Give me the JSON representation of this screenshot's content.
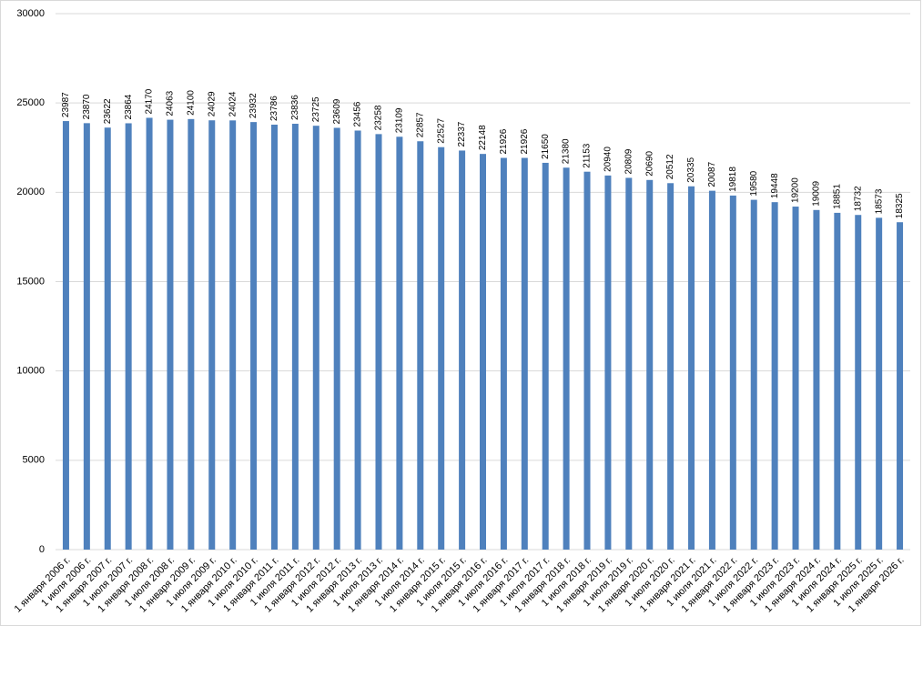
{
  "chart_data": {
    "type": "bar",
    "categories": [
      "1 января 2006 г.",
      "1 июля 2006 г.",
      "1 января 2007 г.",
      "1 июля 2007 г.",
      "1 января 2008 г.",
      "1 июля 2008 г.",
      "1 января 2009 г.",
      "1 июля 2009 г.",
      "1 января 2010 г.",
      "1 июля 2010 г.",
      "1 января 2011 г.",
      "1 июля 2011 г.",
      "1 января 2012 г.",
      "1 июля 2012 г.",
      "1 января 2013 г.",
      "1 июля 2013 г.",
      "1 января 2014 г.",
      "1 июля 2014 г.",
      "1 января 2015 г.",
      "1 июля 2015 г.",
      "1 января 2016 г.",
      "1 июля 2016 г.",
      "1 января 2017 г.",
      "1 июля 2017 г.",
      "1 января 2018 г.",
      "1 июля 2018 г.",
      "1 января 2019 г.",
      "1 июля 2019 г.",
      "1 января 2020 г.",
      "1 июля 2020 г.",
      "1 января 2021 г.",
      "1 июля 2021 г.",
      "1 января 2022 г.",
      "1 июля 2022 г.",
      "1 января 2023 г.",
      "1 июля 2023 г.",
      "1 января 2024 г.",
      "1 июля 2024 г.",
      "1 января 2025 г.",
      "1 июля 2025 г.",
      "1 января 2026 г."
    ],
    "values": [
      23987,
      23870,
      23622,
      23864,
      24170,
      24063,
      24100,
      24029,
      24024,
      23932,
      23786,
      23836,
      23725,
      23609,
      23456,
      23258,
      23109,
      22857,
      22527,
      22337,
      22148,
      21926,
      21926,
      21650,
      21380,
      21153,
      20940,
      20809,
      20690,
      20512,
      20335,
      20087,
      19818,
      19580,
      19448,
      19200,
      19009,
      18851,
      18732,
      18573,
      18325
    ],
    "color": "#4f81bd",
    "ylim": [
      0,
      30000
    ],
    "yticks": [
      0,
      5000,
      10000,
      15000,
      20000,
      25000,
      30000
    ],
    "grid": true
  }
}
